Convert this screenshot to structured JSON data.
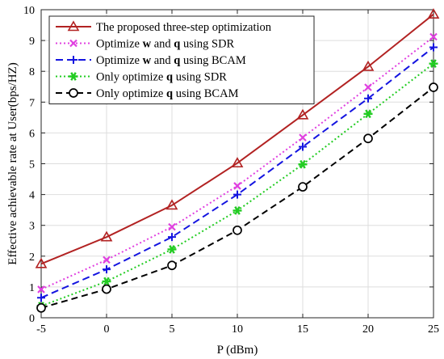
{
  "chart_data": {
    "type": "line",
    "title": "",
    "xlabel": "P (dBm)",
    "ylabel": "Effective achievable rate at User(bps/HZ)",
    "x": [
      -5,
      0,
      5,
      10,
      15,
      20,
      25
    ],
    "xticks": [
      -5,
      0,
      5,
      10,
      15,
      20,
      25
    ],
    "yticks": [
      0,
      1,
      2,
      3,
      4,
      5,
      6,
      7,
      8,
      9,
      10
    ],
    "xlim": [
      -5,
      25
    ],
    "ylim": [
      0,
      10
    ],
    "grid": true,
    "legend_position": "top-left",
    "series": [
      {
        "name": "The proposed three-step optimization",
        "legend_parts": [
          {
            "t": "The proposed three-step optimization",
            "b": false
          }
        ],
        "values": [
          1.75,
          2.62,
          3.65,
          5.02,
          6.58,
          8.15,
          9.85
        ],
        "color": "#b22222",
        "dash": "",
        "marker": "triangle"
      },
      {
        "name": "Optimize w and q using SDR",
        "legend_parts": [
          {
            "t": "Optimize ",
            "b": false
          },
          {
            "t": "w",
            "b": true
          },
          {
            "t": " and ",
            "b": false
          },
          {
            "t": "q",
            "b": true
          },
          {
            "t": " using SDR",
            "b": false
          }
        ],
        "values": [
          0.92,
          1.88,
          2.95,
          4.28,
          5.85,
          7.48,
          9.12
        ],
        "color": "#e040e0",
        "dash": "2,3",
        "marker": "x"
      },
      {
        "name": "Optimize w and q using BCAM",
        "legend_parts": [
          {
            "t": "Optimize ",
            "b": false
          },
          {
            "t": "w",
            "b": true
          },
          {
            "t": " and ",
            "b": false
          },
          {
            "t": "q",
            "b": true
          },
          {
            "t": " using BCAM",
            "b": false
          }
        ],
        "values": [
          0.65,
          1.57,
          2.62,
          4.0,
          5.55,
          7.12,
          8.78
        ],
        "color": "#1414e0",
        "dash": "9,5",
        "marker": "plus"
      },
      {
        "name": "Only optimize q using SDR",
        "legend_parts": [
          {
            "t": "Only optimize ",
            "b": false
          },
          {
            "t": "q",
            "b": true
          },
          {
            "t": " using SDR",
            "b": false
          }
        ],
        "values": [
          0.38,
          1.18,
          2.22,
          3.48,
          4.98,
          6.62,
          8.25
        ],
        "color": "#22cc22",
        "dash": "2,3",
        "marker": "star"
      },
      {
        "name": "Only optimize q using BCAM",
        "legend_parts": [
          {
            "t": "Only optimize ",
            "b": false
          },
          {
            "t": "q",
            "b": true
          },
          {
            "t": " using BCAM",
            "b": false
          }
        ],
        "values": [
          0.32,
          0.93,
          1.7,
          2.84,
          4.25,
          5.82,
          7.48
        ],
        "color": "#000000",
        "dash": "8,5",
        "marker": "circle"
      }
    ]
  }
}
